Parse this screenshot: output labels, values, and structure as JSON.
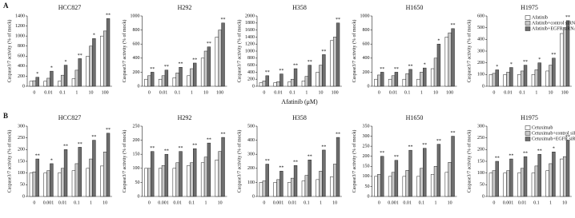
{
  "figure_labels": [
    "A",
    "B"
  ],
  "chart_data": [
    {
      "type": "bar",
      "title": "HCC827",
      "ylabel": "Caspase3/7 activity (% of mock)",
      "categories": [
        "0",
        "0.01",
        "0.1",
        "1",
        "10",
        "100"
      ],
      "ylim": [
        0,
        1400
      ],
      "yticks": [
        0,
        200,
        400,
        600,
        800,
        1000,
        1200,
        1400
      ],
      "series": [
        {
          "color": "#ffffff",
          "values": [
            100,
            100,
            100,
            150,
            600,
            1000
          ]
        },
        {
          "color": "#c8c8c8",
          "values": [
            110,
            160,
            220,
            320,
            800,
            1100
          ]
        },
        {
          "color": "#6e6e6e",
          "values": [
            180,
            300,
            420,
            550,
            950,
            1350
          ],
          "significance": [
            "*",
            "*",
            "*",
            "**",
            "*",
            "**"
          ]
        }
      ]
    },
    {
      "type": "bar",
      "title": "H292",
      "ylabel": "Caspase3/7 activity (% of mock)",
      "categories": [
        "0",
        "0.01",
        "0.1",
        "1",
        "10",
        "100"
      ],
      "ylim": [
        0,
        1000
      ],
      "yticks": [
        0,
        200,
        400,
        600,
        800,
        1000
      ],
      "series": [
        {
          "color": "#ffffff",
          "values": [
            100,
            100,
            120,
            150,
            400,
            700
          ]
        },
        {
          "color": "#c8c8c8",
          "values": [
            150,
            150,
            190,
            250,
            500,
            800
          ]
        },
        {
          "color": "#6e6e6e",
          "values": [
            200,
            230,
            270,
            330,
            560,
            900
          ],
          "significance": [
            "**",
            "**",
            "**",
            "**",
            "**",
            "**"
          ]
        }
      ]
    },
    {
      "type": "bar",
      "title": "H358",
      "ylabel": "Caspase3/7 activity (% of mock)",
      "categories": [
        "0",
        "0.01",
        "0.1",
        "1",
        "10",
        "100"
      ],
      "ylim": [
        0,
        2000
      ],
      "yticks": [
        0,
        200,
        400,
        600,
        800,
        1000,
        1200,
        1400,
        1600,
        1800,
        2000
      ],
      "x_label": "Afatinib (μM)",
      "series": [
        {
          "color": "#ffffff",
          "values": [
            100,
            100,
            120,
            150,
            400,
            1300
          ]
        },
        {
          "color": "#c8c8c8",
          "values": [
            150,
            130,
            200,
            280,
            600,
            1400
          ]
        },
        {
          "color": "#6e6e6e",
          "values": [
            300,
            350,
            500,
            600,
            900,
            1800
          ],
          "significance": [
            "**",
            "**",
            "**",
            "**",
            "**",
            "**"
          ]
        }
      ]
    },
    {
      "type": "bar",
      "title": "H1650",
      "ylabel": "Caspase3/7 activity (% of mock)",
      "categories": [
        "0",
        "0.01",
        "0.1",
        "1",
        "10",
        "100"
      ],
      "ylim": [
        0,
        1000
      ],
      "yticks": [
        0,
        200,
        400,
        600,
        800,
        1000
      ],
      "series": [
        {
          "color": "#ffffff",
          "values": [
            100,
            100,
            100,
            100,
            250,
            700
          ]
        },
        {
          "color": "#c8c8c8",
          "values": [
            160,
            150,
            180,
            200,
            400,
            760
          ]
        },
        {
          "color": "#6e6e6e",
          "values": [
            200,
            200,
            240,
            260,
            600,
            820
          ],
          "significance": [
            "**",
            "**",
            "**",
            "*",
            "*",
            "**"
          ]
        }
      ]
    },
    {
      "type": "bar",
      "title": "H1975",
      "ylabel": "Caspase3/7 activity (% of mock)",
      "categories": [
        "0",
        "0.01",
        "0.1",
        "1",
        "10",
        "100"
      ],
      "ylim": [
        0,
        600
      ],
      "yticks": [
        0,
        100,
        200,
        300,
        400,
        500,
        600
      ],
      "series": [
        {
          "name": "Afatinib",
          "color": "#ffffff",
          "values": [
            100,
            100,
            100,
            100,
            130,
            450
          ]
        },
        {
          "name": "Afatinib+control siRNA",
          "color": "#c8c8c8",
          "values": [
            110,
            120,
            130,
            140,
            180,
            500
          ]
        },
        {
          "name": "Afatinib+EGFR siRNA",
          "color": "#6e6e6e",
          "values": [
            140,
            160,
            180,
            200,
            240,
            560
          ],
          "significance": [
            "*",
            "*",
            "**",
            "*",
            "**",
            "**"
          ]
        }
      ]
    },
    {
      "type": "bar",
      "title": "HCC827",
      "ylabel": "Caspase3/7 activity (% of mock)",
      "categories": [
        "0",
        "0.001",
        "0.01",
        "0.1",
        "1",
        "10"
      ],
      "ylim": [
        0,
        300
      ],
      "yticks": [
        0,
        50,
        100,
        150,
        200,
        250,
        300
      ],
      "series": [
        {
          "color": "#ffffff",
          "values": [
            100,
            100,
            100,
            110,
            120,
            130
          ]
        },
        {
          "color": "#c8c8c8",
          "values": [
            105,
            110,
            120,
            140,
            160,
            190
          ]
        },
        {
          "color": "#6e6e6e",
          "values": [
            160,
            140,
            200,
            210,
            240,
            270
          ],
          "significance": [
            "**",
            "*",
            "**",
            "**",
            "**",
            "**"
          ]
        }
      ]
    },
    {
      "type": "bar",
      "title": "H292",
      "ylabel": "Caspase3/7 activity (% of mock)",
      "categories": [
        "0",
        "0.001",
        "0.01",
        "0.1",
        "1",
        "10"
      ],
      "ylim": [
        0,
        250
      ],
      "yticks": [
        0,
        50,
        100,
        150,
        200,
        250
      ],
      "series": [
        {
          "color": "#ffffff",
          "values": [
            100,
            100,
            100,
            110,
            120,
            130
          ]
        },
        {
          "color": "#c8c8c8",
          "values": [
            100,
            110,
            120,
            120,
            140,
            160
          ]
        },
        {
          "color": "#6e6e6e",
          "values": [
            160,
            150,
            160,
            170,
            190,
            210
          ],
          "significance": [
            "**",
            "**",
            "**",
            "**",
            "**",
            "**"
          ]
        }
      ]
    },
    {
      "type": "bar",
      "title": "H358",
      "ylabel": "Caspase3/7 activity (% of mock)",
      "categories": [
        "0",
        "0.001",
        "0.01",
        "0.1",
        "1",
        "10"
      ],
      "ylim": [
        0,
        500
      ],
      "yticks": [
        0,
        100,
        200,
        300,
        400,
        500
      ],
      "series": [
        {
          "color": "#ffffff",
          "values": [
            100,
            100,
            100,
            110,
            120,
            140
          ]
        },
        {
          "color": "#c8c8c8",
          "values": [
            110,
            120,
            130,
            150,
            180,
            230
          ]
        },
        {
          "color": "#6e6e6e",
          "values": [
            230,
            180,
            220,
            260,
            330,
            420
          ],
          "significance": [
            "**",
            "**",
            "**",
            "**",
            "**",
            "**"
          ]
        }
      ]
    },
    {
      "type": "bar",
      "title": "H1650",
      "ylabel": "Caspase3/7 activity (% of mock)",
      "categories": [
        "0",
        "0.001",
        "0.01",
        "0.1",
        "1",
        "10"
      ],
      "ylim": [
        0,
        350
      ],
      "yticks": [
        0,
        50,
        100,
        150,
        200,
        250,
        300,
        350
      ],
      "series": [
        {
          "color": "#ffffff",
          "values": [
            100,
            100,
            100,
            100,
            110,
            120
          ]
        },
        {
          "color": "#c8c8c8",
          "values": [
            110,
            120,
            130,
            140,
            150,
            170
          ]
        },
        {
          "color": "#6e6e6e",
          "values": [
            200,
            180,
            230,
            240,
            260,
            300
          ],
          "significance": [
            "**",
            "**",
            "**",
            "**",
            "**",
            "**"
          ]
        }
      ]
    },
    {
      "type": "bar",
      "title": "H1975",
      "ylabel": "Caspase3/7 activity (% of mock)",
      "categories": [
        "0",
        "0.001",
        "0.01",
        "0.1",
        "1",
        "10"
      ],
      "ylim": [
        0,
        300
      ],
      "yticks": [
        0,
        50,
        100,
        150,
        200,
        250,
        300
      ],
      "series": [
        {
          "name": "Cetuximab",
          "color": "#ffffff",
          "values": [
            100,
            100,
            100,
            100,
            110,
            160
          ]
        },
        {
          "name": "Cetuximab+control siRNA",
          "color": "#c8c8c8",
          "values": [
            110,
            110,
            120,
            130,
            140,
            170
          ]
        },
        {
          "name": "Cetuximab+EGFR siRNA",
          "color": "#6e6e6e",
          "values": [
            150,
            160,
            170,
            180,
            190,
            240
          ],
          "significance": [
            "**",
            "**",
            "**",
            "**",
            "*",
            "**"
          ]
        }
      ]
    }
  ]
}
